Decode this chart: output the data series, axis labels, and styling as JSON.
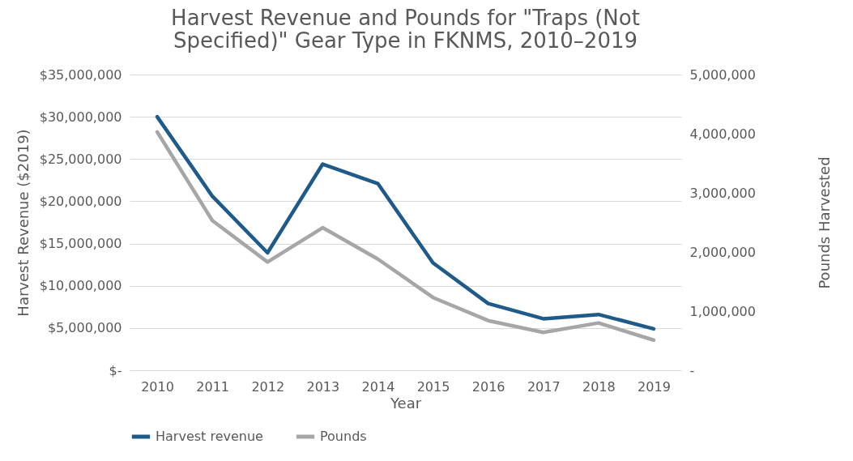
{
  "chart_data": {
    "type": "line",
    "title": "Harvest Revenue and Pounds for \"Traps (Not Specified)\" Gear Type in FKNMS, 2010–2019",
    "xlabel": "Year",
    "ylabel": "Harvest Revenue ($2019)",
    "y2label": "Pounds Harvested",
    "categories": [
      "2010",
      "2011",
      "2012",
      "2013",
      "2014",
      "2015",
      "2016",
      "2017",
      "2018",
      "2019"
    ],
    "series": [
      {
        "name": "Harvest revenue",
        "color": "#1f5b8a",
        "values": [
          30000000,
          20600000,
          13900000,
          24400000,
          22100000,
          12700000,
          7900000,
          6100000,
          6600000,
          4900000
        ]
      },
      {
        "name": "Pounds",
        "color": "#a6a6a6",
        "axis": "y2",
        "values": [
          4030000,
          2530000,
          1830000,
          2410000,
          1880000,
          1230000,
          840000,
          640000,
          800000,
          510000
        ]
      }
    ],
    "ylim": [
      0,
      35000000
    ],
    "yticks": [
      {
        "value": 0,
        "label": "$-"
      },
      {
        "value": 5000000,
        "label": "$5,000,000"
      },
      {
        "value": 10000000,
        "label": "$10,000,000"
      },
      {
        "value": 15000000,
        "label": "$15,000,000"
      },
      {
        "value": 20000000,
        "label": "$20,000,000"
      },
      {
        "value": 25000000,
        "label": "$25,000,000"
      },
      {
        "value": 30000000,
        "label": "$30,000,000"
      },
      {
        "value": 35000000,
        "label": "$35,000,000"
      }
    ],
    "y2lim": [
      0,
      5000000
    ],
    "y2ticks": [
      {
        "value": 0,
        "label": "-"
      },
      {
        "value": 1000000,
        "label": "1,000,000"
      },
      {
        "value": 2000000,
        "label": "2,000,000"
      },
      {
        "value": 3000000,
        "label": "3,000,000"
      },
      {
        "value": 4000000,
        "label": "4,000,000"
      },
      {
        "value": 5000000,
        "label": "5,000,000"
      }
    ],
    "grid": "y",
    "legend": "bottom",
    "marker": "none",
    "line_style": "solid"
  }
}
